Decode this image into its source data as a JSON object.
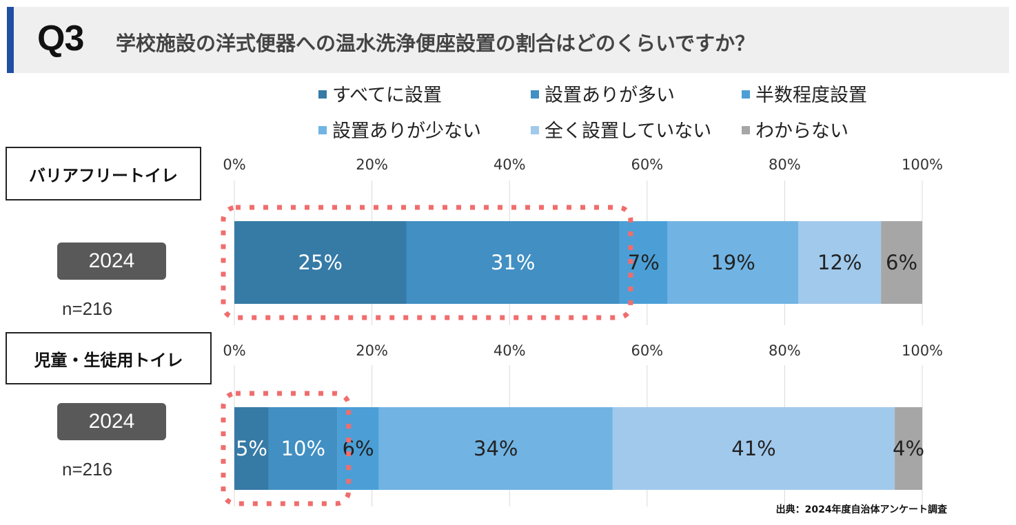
{
  "header": {
    "q_number": "Q3",
    "question": "学校施設の洋式便器への温水洗浄便座設置の割合はどのくらいですか？"
  },
  "legend": [
    {
      "label": "すべてに設置",
      "color": "#367aa6"
    },
    {
      "label": "設置ありが多い",
      "color": "#418fc3"
    },
    {
      "label": "半数程度設置",
      "color": "#4b9fd6"
    },
    {
      "label": "設置ありが少ない",
      "color": "#71b4e4"
    },
    {
      "label": "全く設置していない",
      "color": "#a1c9ec"
    },
    {
      "label": "わからない",
      "color": "#a6a6a6"
    }
  ],
  "sections": [
    {
      "title": "バリアフリートイレ",
      "year": "2024",
      "n": "n=216"
    },
    {
      "title": "児童・生徒用トイレ",
      "year": "2024",
      "n": "n=216"
    }
  ],
  "source": "出典：2024年度自治体アンケート調査",
  "highlight_color": "#f06d6d",
  "chart_data": [
    {
      "type": "bar",
      "orientation": "horizontal-stacked-100",
      "title": "バリアフリートイレ",
      "categories": [
        "2024"
      ],
      "x_ticks": [
        "0%",
        "20%",
        "40%",
        "60%",
        "80%",
        "100%"
      ],
      "xlim": [
        0,
        100
      ],
      "series": [
        {
          "name": "すべてに設置",
          "values": [
            25
          ],
          "label": "25%"
        },
        {
          "name": "設置ありが多い",
          "values": [
            31
          ],
          "label": "31%"
        },
        {
          "name": "半数程度設置",
          "values": [
            7
          ],
          "label": "7%"
        },
        {
          "name": "設置ありが少ない",
          "values": [
            19
          ],
          "label": "19%"
        },
        {
          "name": "全く設置していない",
          "values": [
            12
          ],
          "label": "12%"
        },
        {
          "name": "わからない",
          "values": [
            6
          ],
          "label": "6%"
        }
      ],
      "highlight": [
        "すべてに設置",
        "設置ありが多い"
      ]
    },
    {
      "type": "bar",
      "orientation": "horizontal-stacked-100",
      "title": "児童・生徒用トイレ",
      "categories": [
        "2024"
      ],
      "x_ticks": [
        "0%",
        "20%",
        "40%",
        "60%",
        "80%",
        "100%"
      ],
      "xlim": [
        0,
        100
      ],
      "series": [
        {
          "name": "すべてに設置",
          "values": [
            5
          ],
          "label": "5%"
        },
        {
          "name": "設置ありが多い",
          "values": [
            10
          ],
          "label": "10%"
        },
        {
          "name": "半数程度設置",
          "values": [
            6
          ],
          "label": "6%"
        },
        {
          "name": "設置ありが少ない",
          "values": [
            34
          ],
          "label": "34%"
        },
        {
          "name": "全く設置していない",
          "values": [
            41
          ],
          "label": "41%"
        },
        {
          "name": "わからない",
          "values": [
            4
          ],
          "label": "4%"
        }
      ],
      "highlight": [
        "すべてに設置",
        "設置ありが多い"
      ]
    }
  ]
}
